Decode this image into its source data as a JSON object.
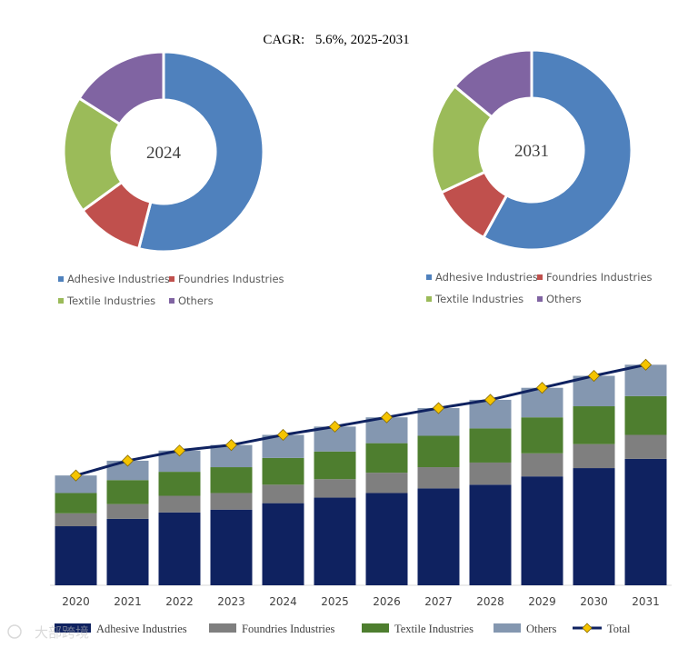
{
  "chart_data": [
    {
      "type": "pie",
      "variant": "donut",
      "label": "2024",
      "categories": [
        "Adhesive Industries",
        "Foundries Industries",
        "Textile Industries",
        "Others"
      ],
      "values": [
        54.0,
        11.0,
        19.0,
        16.0
      ],
      "colors": [
        "#4F81BD",
        "#C0504D",
        "#9BBB59",
        "#8064A2"
      ],
      "legend_position": "bottom"
    },
    {
      "type": "pie",
      "variant": "donut",
      "label": "2031",
      "categories": [
        "Adhesive Industries",
        "Foundries Industries",
        "Textile Industries",
        "Others"
      ],
      "values": [
        58.0,
        10.0,
        18.0,
        14.0
      ],
      "colors": [
        "#4F81BD",
        "#C0504D",
        "#9BBB59",
        "#8064A2"
      ],
      "legend_position": "bottom"
    },
    {
      "type": "bar",
      "stacked": true,
      "categories": [
        "2020",
        "2021",
        "2022",
        "2023",
        "2024",
        "2025",
        "2026",
        "2027",
        "2028",
        "2029",
        "2030",
        "2031"
      ],
      "series": [
        {
          "name": "Adhesive Industries",
          "color": "#0F2260",
          "values": [
            64,
            72,
            79,
            82,
            89,
            95,
            100,
            105,
            109,
            118,
            127,
            137
          ]
        },
        {
          "name": "Foundries Industries",
          "color": "#7F7F7F",
          "values": [
            14,
            16,
            18,
            18,
            20,
            20,
            22,
            23,
            24,
            25,
            26,
            26
          ]
        },
        {
          "name": "Textile Industries",
          "color": "#4E7E2F",
          "values": [
            22,
            26,
            26,
            28,
            29,
            30,
            32,
            34,
            37,
            39,
            41,
            42
          ]
        },
        {
          "name": "Others",
          "color": "#8497B0",
          "values": [
            19,
            21,
            23,
            24,
            25,
            27,
            28,
            30,
            31,
            32,
            33,
            34
          ]
        }
      ],
      "line_series": {
        "name": "Total",
        "color": "#0F2260",
        "marker_color": "#F5C400",
        "values": [
          119,
          135,
          146,
          152,
          163,
          172,
          182,
          192,
          201,
          214,
          227,
          239
        ]
      },
      "ylim": [
        0,
        260
      ],
      "grid": false,
      "legend_position": "bottom"
    }
  ],
  "header": {
    "cagr_label": "CAGR:",
    "cagr_value": "5.6%, 2025-2031"
  },
  "legend_total_label": "Total",
  "watermark": "大部跨境"
}
